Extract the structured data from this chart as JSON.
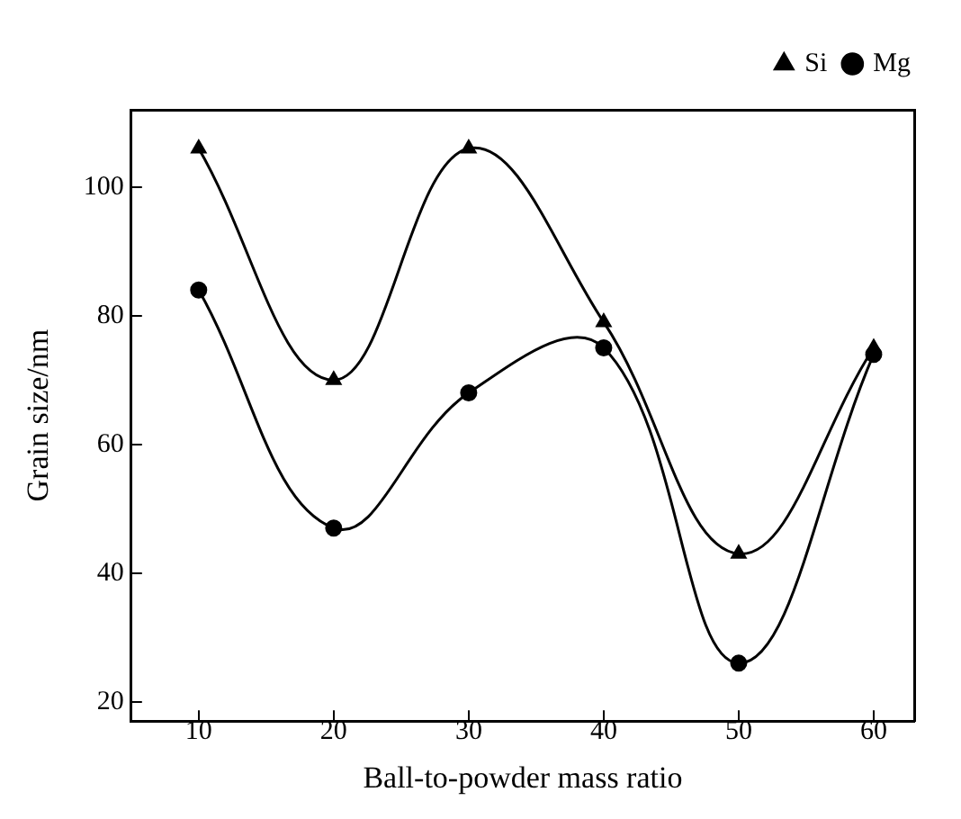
{
  "chart_data": {
    "type": "line",
    "xlabel": "Ball-to-powder mass ratio",
    "ylabel": "Grain size/nm",
    "x": [
      10,
      20,
      30,
      40,
      50,
      60
    ],
    "series": [
      {
        "name": "Mg",
        "color": "#000000",
        "marker": "circle",
        "values": [
          84,
          47,
          68,
          75,
          26,
          74
        ]
      },
      {
        "name": "Si",
        "color": "#000000",
        "marker": "triangle",
        "values": [
          106,
          70,
          106,
          79,
          43,
          75
        ]
      }
    ],
    "xlim": [
      5,
      63
    ],
    "xticks": [
      10,
      20,
      30,
      40,
      50,
      60
    ],
    "ylim": [
      17,
      112
    ],
    "yticks": [
      20,
      40,
      60,
      80,
      100
    ],
    "grid": false,
    "legend": "top right",
    "line_style": "solid"
  }
}
